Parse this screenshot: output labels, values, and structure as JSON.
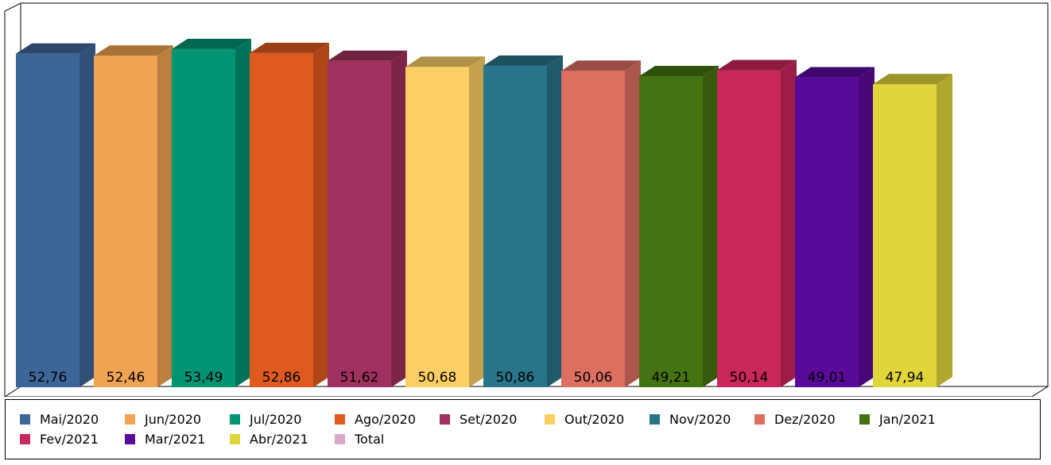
{
  "chart_data": {
    "type": "bar",
    "style": "3d-column",
    "categories": [
      "Mai/2020",
      "Jun/2020",
      "Jul/2020",
      "Ago/2020",
      "Set/2020",
      "Out/2020",
      "Nov/2020",
      "Dez/2020",
      "Jan/2021",
      "Fev/2021",
      "Mar/2021",
      "Abr/2021"
    ],
    "values": [
      52.76,
      52.46,
      53.49,
      52.86,
      51.62,
      50.68,
      50.86,
      50.06,
      49.21,
      50.14,
      49.01,
      47.94
    ],
    "value_labels": [
      "52,76",
      "52,46",
      "53,49",
      "52,86",
      "51,62",
      "50,68",
      "50,86",
      "50,06",
      "49,21",
      "50,14",
      "49,01",
      "47,94"
    ],
    "colors": [
      "#3d6698",
      "#f0a352",
      "#009473",
      "#df5a1f",
      "#a0305d",
      "#fcce64",
      "#287489",
      "#dc6f60",
      "#457311",
      "#c8275a",
      "#5a0a9a",
      "#e0d53a"
    ],
    "ylim": [
      0,
      60
    ],
    "grid": false,
    "legend_position": "bottom",
    "legend": [
      {
        "label": "Mai/2020",
        "color": "#3d6698"
      },
      {
        "label": "Jun/2020",
        "color": "#f0a352"
      },
      {
        "label": "Jul/2020",
        "color": "#009473"
      },
      {
        "label": "Ago/2020",
        "color": "#df5a1f"
      },
      {
        "label": "Set/2020",
        "color": "#a0305d"
      },
      {
        "label": "Out/2020",
        "color": "#fcce64"
      },
      {
        "label": "Nov/2020",
        "color": "#287489"
      },
      {
        "label": "Dez/2020",
        "color": "#dc6f60"
      },
      {
        "label": "Jan/2021",
        "color": "#457311"
      },
      {
        "label": "Fev/2021",
        "color": "#c8275a"
      },
      {
        "label": "Mar/2021",
        "color": "#5a0a9a"
      },
      {
        "label": "Abr/2021",
        "color": "#e0d53a"
      },
      {
        "label": "Total",
        "color": "#d8a8c8"
      }
    ]
  }
}
